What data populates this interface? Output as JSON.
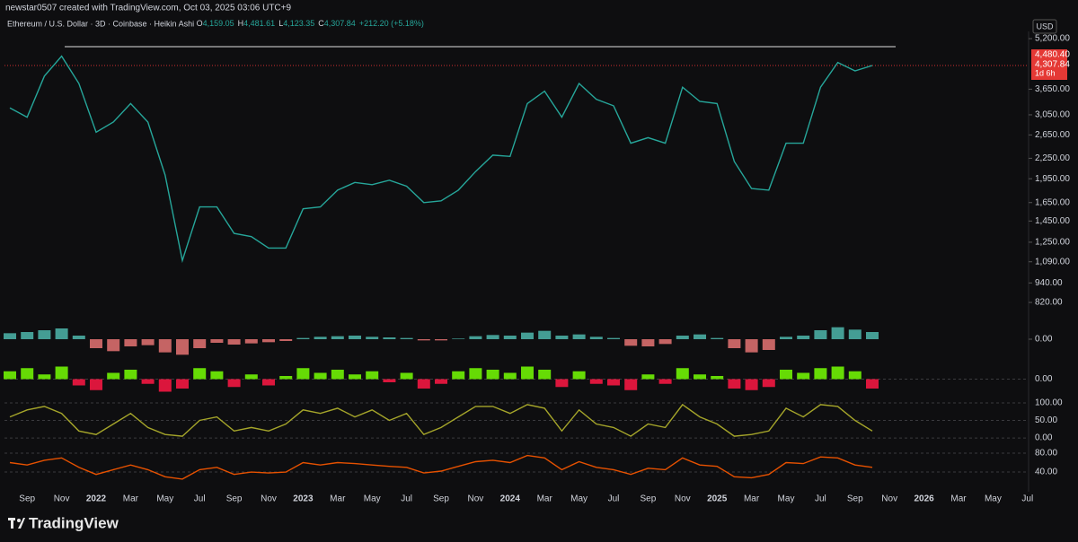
{
  "header": {
    "author_line": "newstar0507 created with TradingView.com, Oct 03, 2025 03:06 UTC+9",
    "symbol": "Ethereum / U.S. Dollar · 3D · Coinbase · Heikin Ashi",
    "ohlc": [
      {
        "label": "O",
        "value": "4,159.05"
      },
      {
        "label": "H",
        "value": "4,481.61"
      },
      {
        "label": "L",
        "value": "4,123.35"
      },
      {
        "label": "C",
        "value": "4,307.84"
      }
    ],
    "change": "+212.20 (+5.18%)"
  },
  "currency": "USD",
  "price_tags": [
    "4,480.40",
    "4,307.84",
    "1d 6h"
  ],
  "brand": "TradingView",
  "chart_data": [
    {
      "type": "line",
      "log_scale": true,
      "grid": false,
      "color": "#26a69a",
      "categories": [
        null,
        "Sep",
        null,
        "Nov",
        null,
        "2022",
        null,
        "Mar",
        null,
        "May",
        null,
        "Jul",
        null,
        "Sep",
        null,
        "Nov",
        null,
        "2023",
        null,
        "Mar",
        null,
        "May",
        null,
        "Jul",
        null,
        "Sep",
        null,
        "Nov",
        null,
        "2024",
        null,
        "Mar",
        null,
        "May",
        null,
        "Jul",
        null,
        "Sep",
        null,
        "Nov",
        null,
        "2025",
        null,
        "Mar",
        null,
        "May",
        null,
        "Jul",
        null,
        "Sep",
        null,
        "Nov",
        null,
        "2026",
        null,
        "Mar",
        null,
        "May",
        null,
        "Jul"
      ],
      "values": [
        3200,
        3000,
        4000,
        4600,
        3800,
        2700,
        2900,
        3300,
        2900,
        2000,
        1100,
        1600,
        1600,
        1330,
        1300,
        1200,
        1200,
        1580,
        1600,
        1800,
        1900,
        1870,
        1930,
        1850,
        1650,
        1670,
        1800,
        2050,
        2300,
        2280,
        3300,
        3600,
        3000,
        3800,
        3400,
        3250,
        2500,
        2600,
        2500,
        3700,
        3350,
        3300,
        2200,
        1820,
        1800,
        2500,
        2500,
        3700,
        4400,
        4150,
        4308,
        null,
        null,
        null,
        null,
        null,
        null,
        null,
        null,
        null
      ],
      "ylim": [
        780,
        5470
      ],
      "yticks": [
        {
          "value": 5200,
          "label": "5,200.00"
        },
        {
          "value": 3650,
          "label": "3,650.00"
        },
        {
          "value": 3050,
          "label": "3,050.00"
        },
        {
          "value": 2650,
          "label": "2,650.00"
        },
        {
          "value": 2250,
          "label": "2,250.00"
        },
        {
          "value": 1950,
          "label": "1,950.00"
        },
        {
          "value": 1650,
          "label": "1,650.00"
        },
        {
          "value": 1450,
          "label": "1,450.00"
        },
        {
          "value": 1250,
          "label": "1,250.00"
        },
        {
          "value": 1090,
          "label": "1,090.00"
        },
        {
          "value": 940,
          "label": "940.00"
        },
        {
          "value": 820,
          "label": "820.00"
        }
      ]
    },
    {
      "type": "bar",
      "grid": false,
      "colors": {
        "positive": "#4db6ac",
        "negative": "#e57373"
      },
      "values": [
        100,
        120,
        150,
        180,
        60,
        -150,
        -200,
        -120,
        -100,
        -220,
        -260,
        -150,
        -60,
        -90,
        -70,
        -50,
        -30,
        20,
        40,
        50,
        60,
        40,
        30,
        20,
        -20,
        -20,
        10,
        50,
        70,
        60,
        110,
        140,
        60,
        80,
        40,
        20,
        -110,
        -120,
        -80,
        60,
        80,
        20,
        -150,
        -220,
        -180,
        40,
        60,
        150,
        200,
        160,
        120,
        null,
        null,
        null,
        null,
        null,
        null,
        null,
        null,
        null
      ],
      "ylim": [
        -300,
        300
      ],
      "yticks": [
        {
          "value": 0,
          "label": "0.00"
        }
      ]
    },
    {
      "type": "bar",
      "grid": true,
      "colors": {
        "positive": "#76ff03",
        "negative": "#ff1744"
      },
      "values": [
        0.5,
        0.7,
        0.3,
        0.8,
        -0.4,
        -0.7,
        0.4,
        0.6,
        -0.3,
        -0.8,
        -0.6,
        0.7,
        0.5,
        -0.5,
        0.3,
        -0.4,
        0.2,
        0.7,
        0.4,
        0.6,
        0.3,
        0.5,
        -0.2,
        0.4,
        -0.6,
        -0.3,
        0.5,
        0.7,
        0.6,
        0.4,
        0.8,
        0.6,
        -0.5,
        0.5,
        -0.3,
        -0.4,
        -0.7,
        0.3,
        -0.3,
        0.7,
        0.3,
        0.2,
        -0.6,
        -0.7,
        -0.5,
        0.6,
        0.4,
        0.7,
        0.8,
        0.5,
        -0.6,
        null,
        null,
        null,
        null,
        null,
        null,
        null,
        null,
        null
      ],
      "ylim": [
        -1,
        1
      ],
      "yticks": [
        {
          "value": 0,
          "label": "0.00"
        }
      ]
    },
    {
      "type": "line",
      "grid": true,
      "color": "#a5a52a",
      "values": [
        60,
        80,
        90,
        70,
        20,
        10,
        40,
        70,
        30,
        10,
        5,
        50,
        60,
        20,
        30,
        20,
        40,
        80,
        70,
        85,
        60,
        80,
        50,
        70,
        10,
        30,
        60,
        90,
        90,
        70,
        95,
        85,
        20,
        80,
        40,
        30,
        5,
        40,
        30,
        95,
        60,
        40,
        5,
        10,
        20,
        85,
        60,
        95,
        90,
        50,
        20,
        null,
        null,
        null,
        null,
        null,
        null,
        null,
        null,
        null
      ],
      "ylim": [
        -10,
        123
      ],
      "yticks": [
        {
          "value": 100,
          "label": "100.00"
        },
        {
          "value": 50,
          "label": "50.00"
        },
        {
          "value": 0,
          "label": "0.00"
        }
      ]
    },
    {
      "type": "line",
      "grid": true,
      "color": "#e65100",
      "values": [
        60,
        55,
        65,
        70,
        50,
        35,
        45,
        55,
        45,
        30,
        25,
        45,
        50,
        35,
        40,
        38,
        40,
        60,
        55,
        60,
        58,
        55,
        52,
        50,
        38,
        42,
        52,
        62,
        65,
        60,
        75,
        70,
        45,
        62,
        50,
        45,
        35,
        48,
        45,
        70,
        55,
        52,
        30,
        28,
        35,
        60,
        58,
        72,
        70,
        55,
        50,
        null,
        null,
        null,
        null,
        null,
        null,
        null,
        null,
        null
      ],
      "ylim": [
        4,
        99
      ],
      "yticks": [
        {
          "value": 80,
          "label": "80.00"
        },
        {
          "value": 40,
          "label": "40.00"
        }
      ]
    }
  ]
}
